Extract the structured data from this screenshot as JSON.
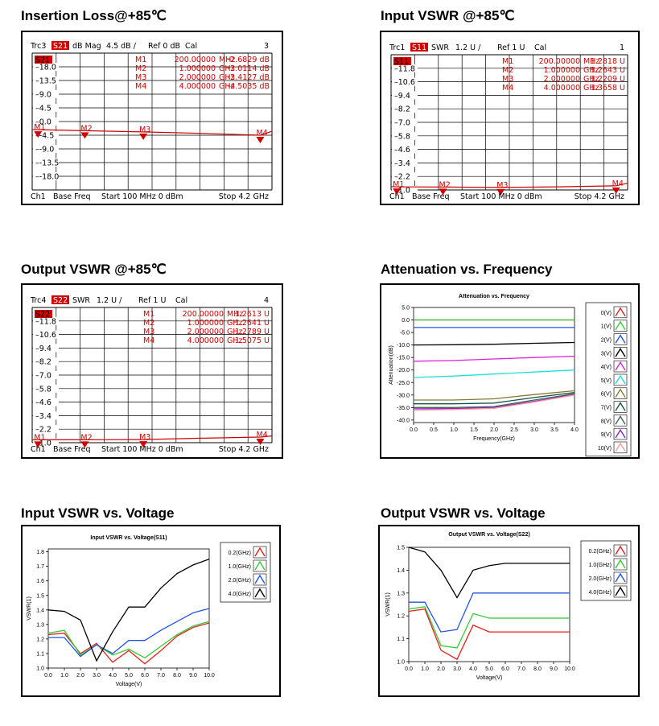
{
  "sections": {
    "insertion_loss": "Insertion Loss@+85℃",
    "input_vswr": "Input VSWR @+85℃",
    "output_vswr": "Output VSWR @+85℃",
    "attenuation": "Attenuation vs. Frequency",
    "input_vswr_voltage": "Input VSWR vs. Voltage",
    "output_vswr_voltage": "Output VSWR vs. Voltage"
  },
  "colors": {
    "trace": "#d00000",
    "grid": "#000000"
  },
  "chart_data": [
    {
      "id": "na1",
      "type": "line",
      "header": {
        "trc": "Trc3",
        "param": "S21",
        "format": "dB Mag",
        "scale": "4.5 dB /",
        "ref": "Ref 0 dB",
        "cal": "Cal",
        "num": "3"
      },
      "param_badge": "S21",
      "yticks": [
        "18.0",
        "13.5",
        "9.0",
        "4.5",
        "0.0",
        "-4.5",
        "-9.0",
        "-13.5",
        "-18.0"
      ],
      "ylim": [
        -22.5,
        22.5
      ],
      "markers_table": [
        {
          "name": "M1",
          "x": "200.00000",
          "unit": "MHz",
          "val": "-2.6829 dB"
        },
        {
          "name": "M2",
          "x": "1.000000",
          "unit": "GHz",
          "val": "-3.0114 dB"
        },
        {
          "name": "M3",
          "x": "2.000000",
          "unit": "GHz",
          "val": "-3.4127 dB"
        },
        {
          "name": "M4",
          "x": "4.000000",
          "unit": "GHz",
          "val": "-4.5035 dB"
        }
      ],
      "x_ghz": [
        0.1,
        0.2,
        1.0,
        2.0,
        3.0,
        4.0,
        4.2
      ],
      "y": [
        -2.6,
        -2.68,
        -3.01,
        -3.41,
        -3.9,
        -4.5,
        -3.2
      ],
      "marker_x": [
        0.2,
        1.0,
        2.0,
        4.0
      ],
      "marker_labels": [
        "M1",
        "M2",
        "M3",
        "M4"
      ],
      "footer": {
        "ch": "Ch1",
        "base": "Base Freq",
        "start": "Start  100 MHz  0 dBm",
        "stop": "Stop  4.2 GHz"
      }
    },
    {
      "id": "na2",
      "type": "line",
      "header": {
        "trc": "Trc1",
        "param": "S11",
        "format": "SWR",
        "scale": "1.2 U /",
        "ref": "Ref 1 U",
        "cal": "Cal",
        "num": "1"
      },
      "param_badge": "S11",
      "yticks": [
        "11.8",
        "10.6",
        "9.4",
        "8.2",
        "7.0",
        "5.8",
        "4.6",
        "3.4",
        "2.2",
        "1.0"
      ],
      "ylim": [
        1.0,
        13.0
      ],
      "markers_table": [
        {
          "name": "M1",
          "x": "200.00000",
          "unit": "MHz",
          "val": "1.2818 U"
        },
        {
          "name": "M2",
          "x": "1.000000",
          "unit": "GHz",
          "val": "1.2643 U"
        },
        {
          "name": "M3",
          "x": "2.000000",
          "unit": "GHz",
          "val": "1.2209 U"
        },
        {
          "name": "M4",
          "x": "4.000000",
          "unit": "GHz",
          "val": "1.3658 U"
        }
      ],
      "x_ghz": [
        0.1,
        0.2,
        1.0,
        2.0,
        3.0,
        4.0,
        4.2
      ],
      "y": [
        1.3,
        1.28,
        1.26,
        1.22,
        1.28,
        1.37,
        1.6
      ],
      "marker_x": [
        0.2,
        1.0,
        2.0,
        4.0
      ],
      "marker_labels": [
        "M1",
        "M2",
        "M3",
        "M4"
      ],
      "footer": {
        "ch": "Ch1",
        "base": "Base Freq",
        "start": "Start  100 MHz  0 dBm",
        "stop": "Stop  4.2 GHz"
      }
    },
    {
      "id": "na3",
      "type": "line",
      "header": {
        "trc": "Trc4",
        "param": "S22",
        "format": "SWR",
        "scale": "1.2 U /",
        "ref": "Ref 1 U",
        "cal": "Cal",
        "num": "4"
      },
      "param_badge": "S22",
      "yticks": [
        "11.8",
        "10.6",
        "9.4",
        "8.2",
        "7.0",
        "5.8",
        "4.6",
        "3.4",
        "2.2",
        "1.0"
      ],
      "ylim": [
        1.0,
        13.0
      ],
      "markers_table": [
        {
          "name": "M1",
          "x": "200.00000",
          "unit": "MHz",
          "val": "1.2613 U"
        },
        {
          "name": "M2",
          "x": "1.000000",
          "unit": "GHz",
          "val": "1.2641 U"
        },
        {
          "name": "M3",
          "x": "2.000000",
          "unit": "GHz",
          "val": "1.2789 U"
        },
        {
          "name": "M4",
          "x": "4.000000",
          "unit": "GHz",
          "val": "1.5075 U"
        }
      ],
      "x_ghz": [
        0.1,
        0.2,
        1.0,
        2.0,
        3.0,
        4.0,
        4.2
      ],
      "y": [
        1.25,
        1.26,
        1.26,
        1.28,
        1.4,
        1.5,
        1.6
      ],
      "marker_x": [
        0.2,
        1.0,
        2.0,
        4.0
      ],
      "marker_labels": [
        "M1",
        "M2",
        "M3",
        "M4"
      ],
      "footer": {
        "ch": "Ch1",
        "base": "Base Freq",
        "start": "Start  100 MHz  0 dBm",
        "stop": "Stop  4.2 GHz"
      }
    },
    {
      "id": "att",
      "type": "line",
      "title": "Attenuation vs. Frequency",
      "xlabel": "Frequency(GHz)",
      "ylabel": "Attenuation(dB)",
      "xlim": [
        0,
        4.0
      ],
      "ylim": [
        -41,
        5
      ],
      "xticks": [
        "0.0",
        "0.5",
        "1.0",
        "1.5",
        "2.0",
        "2.5",
        "3.0",
        "3.5",
        "4.0"
      ],
      "yticks": [
        "5.0",
        "0.0",
        "-5.0",
        "-10.0",
        "-15.0",
        "-20.0",
        "-25.0",
        "-30.0",
        "-35.0",
        "-40.0"
      ],
      "ytick_vals": [
        5,
        0,
        -5,
        -10,
        -15,
        -20,
        -25,
        -30,
        -35,
        -40
      ],
      "x": [
        0,
        1,
        2,
        3,
        4
      ],
      "series": [
        {
          "name": "0(V)",
          "color": "#e51f1f",
          "values": [
            0.0,
            0.0,
            0.0,
            0.0,
            0.0
          ]
        },
        {
          "name": "1(V)",
          "color": "#33cc33",
          "values": [
            0.0,
            0.0,
            0.0,
            0.0,
            0.0
          ]
        },
        {
          "name": "2(V)",
          "color": "#2255dd",
          "values": [
            -3.0,
            -3.0,
            -3.0,
            -3.0,
            -3.0
          ]
        },
        {
          "name": "3(V)",
          "color": "#000000",
          "values": [
            -10.0,
            -9.9,
            -9.7,
            -9.3,
            -9.0
          ]
        },
        {
          "name": "4(V)",
          "color": "#dd22dd",
          "values": [
            -16.5,
            -16.2,
            -15.6,
            -15.0,
            -14.5
          ]
        },
        {
          "name": "5(V)",
          "color": "#22dddd",
          "values": [
            -23.0,
            -22.4,
            -21.6,
            -20.8,
            -20.0
          ]
        },
        {
          "name": "6(V)",
          "color": "#887733",
          "values": [
            -32.0,
            -32.0,
            -31.5,
            -29.8,
            -28.3
          ]
        },
        {
          "name": "7(V)",
          "color": "#115544",
          "values": [
            -33.5,
            -33.5,
            -33.2,
            -31.0,
            -29.0
          ]
        },
        {
          "name": "8(V)",
          "color": "#446655",
          "values": [
            -35.0,
            -35.0,
            -34.6,
            -32.0,
            -29.5
          ]
        },
        {
          "name": "9(V)",
          "color": "#8822cc",
          "values": [
            -35.5,
            -35.4,
            -35.0,
            -32.5,
            -29.8
          ]
        },
        {
          "name": "10(V)",
          "color": "#ff9999",
          "values": [
            -36.0,
            -35.8,
            -35.3,
            -32.8,
            -30.0
          ]
        }
      ]
    },
    {
      "id": "ivv",
      "type": "line",
      "title": "Input VSWR vs. Voltage(S11)",
      "xlabel": "Voltage(V)",
      "ylabel": "VSWR(1)",
      "xlim": [
        0,
        10
      ],
      "ylim": [
        1.0,
        1.82
      ],
      "xticks": [
        "0.0",
        "1.0",
        "2.0",
        "3.0",
        "4.0",
        "5.0",
        "6.0",
        "7.0",
        "8.0",
        "9.0",
        "10.0"
      ],
      "yticks": [
        "1.8",
        "1.7",
        "1.6",
        "1.5",
        "1.4",
        "1.3",
        "1.2",
        "1.1",
        "1.0"
      ],
      "ytick_vals": [
        1.8,
        1.7,
        1.6,
        1.5,
        1.4,
        1.3,
        1.2,
        1.1,
        1.0
      ],
      "x": [
        0,
        1,
        2,
        3,
        4,
        5,
        6,
        7,
        8,
        9,
        10
      ],
      "series": [
        {
          "name": "0.2(GHz)",
          "color": "#e51f1f",
          "values": [
            1.23,
            1.24,
            1.1,
            1.17,
            1.04,
            1.12,
            1.03,
            1.12,
            1.22,
            1.28,
            1.31
          ]
        },
        {
          "name": "1.0(GHz)",
          "color": "#33cc33",
          "values": [
            1.24,
            1.26,
            1.09,
            1.16,
            1.09,
            1.13,
            1.07,
            1.15,
            1.23,
            1.29,
            1.32
          ]
        },
        {
          "name": "2.0(GHz)",
          "color": "#2255dd",
          "values": [
            1.21,
            1.21,
            1.08,
            1.16,
            1.1,
            1.19,
            1.19,
            1.26,
            1.32,
            1.38,
            1.41
          ]
        },
        {
          "name": "4.0(GHz)",
          "color": "#000000",
          "values": [
            1.4,
            1.39,
            1.33,
            1.05,
            1.25,
            1.42,
            1.42,
            1.55,
            1.65,
            1.71,
            1.75
          ]
        }
      ]
    },
    {
      "id": "ovv",
      "type": "line",
      "title": "Output VSWR vs. Voltage(S22)",
      "xlabel": "Voltage(V)",
      "ylabel": "VSWR(1)",
      "xlim": [
        0,
        10
      ],
      "ylim": [
        1.0,
        1.5
      ],
      "xticks": [
        "0.0",
        "1.0",
        "2.0",
        "3.0",
        "4.0",
        "5.0",
        "6.0",
        "7.0",
        "8.0",
        "9.0",
        "10.0"
      ],
      "yticks": [
        "1.5",
        "1.4",
        "1.3",
        "1.2",
        "1.1",
        "1.0"
      ],
      "ytick_vals": [
        1.5,
        1.4,
        1.3,
        1.2,
        1.1,
        1.0
      ],
      "x": [
        0,
        1,
        2,
        3,
        4,
        5,
        6,
        7,
        8,
        9,
        10
      ],
      "series": [
        {
          "name": "0.2(GHz)",
          "color": "#e51f1f",
          "values": [
            1.22,
            1.23,
            1.05,
            1.01,
            1.16,
            1.13,
            1.13,
            1.13,
            1.13,
            1.13,
            1.13
          ]
        },
        {
          "name": "1.0(GHz)",
          "color": "#33cc33",
          "values": [
            1.23,
            1.24,
            1.07,
            1.06,
            1.21,
            1.19,
            1.19,
            1.19,
            1.19,
            1.19,
            1.19
          ]
        },
        {
          "name": "2.0(GHz)",
          "color": "#2255dd",
          "values": [
            1.26,
            1.26,
            1.13,
            1.14,
            1.3,
            1.3,
            1.3,
            1.3,
            1.3,
            1.3,
            1.3
          ]
        },
        {
          "name": "4.0(GHz)",
          "color": "#000000",
          "values": [
            1.5,
            1.48,
            1.4,
            1.28,
            1.4,
            1.42,
            1.43,
            1.43,
            1.43,
            1.43,
            1.43
          ]
        }
      ]
    }
  ]
}
